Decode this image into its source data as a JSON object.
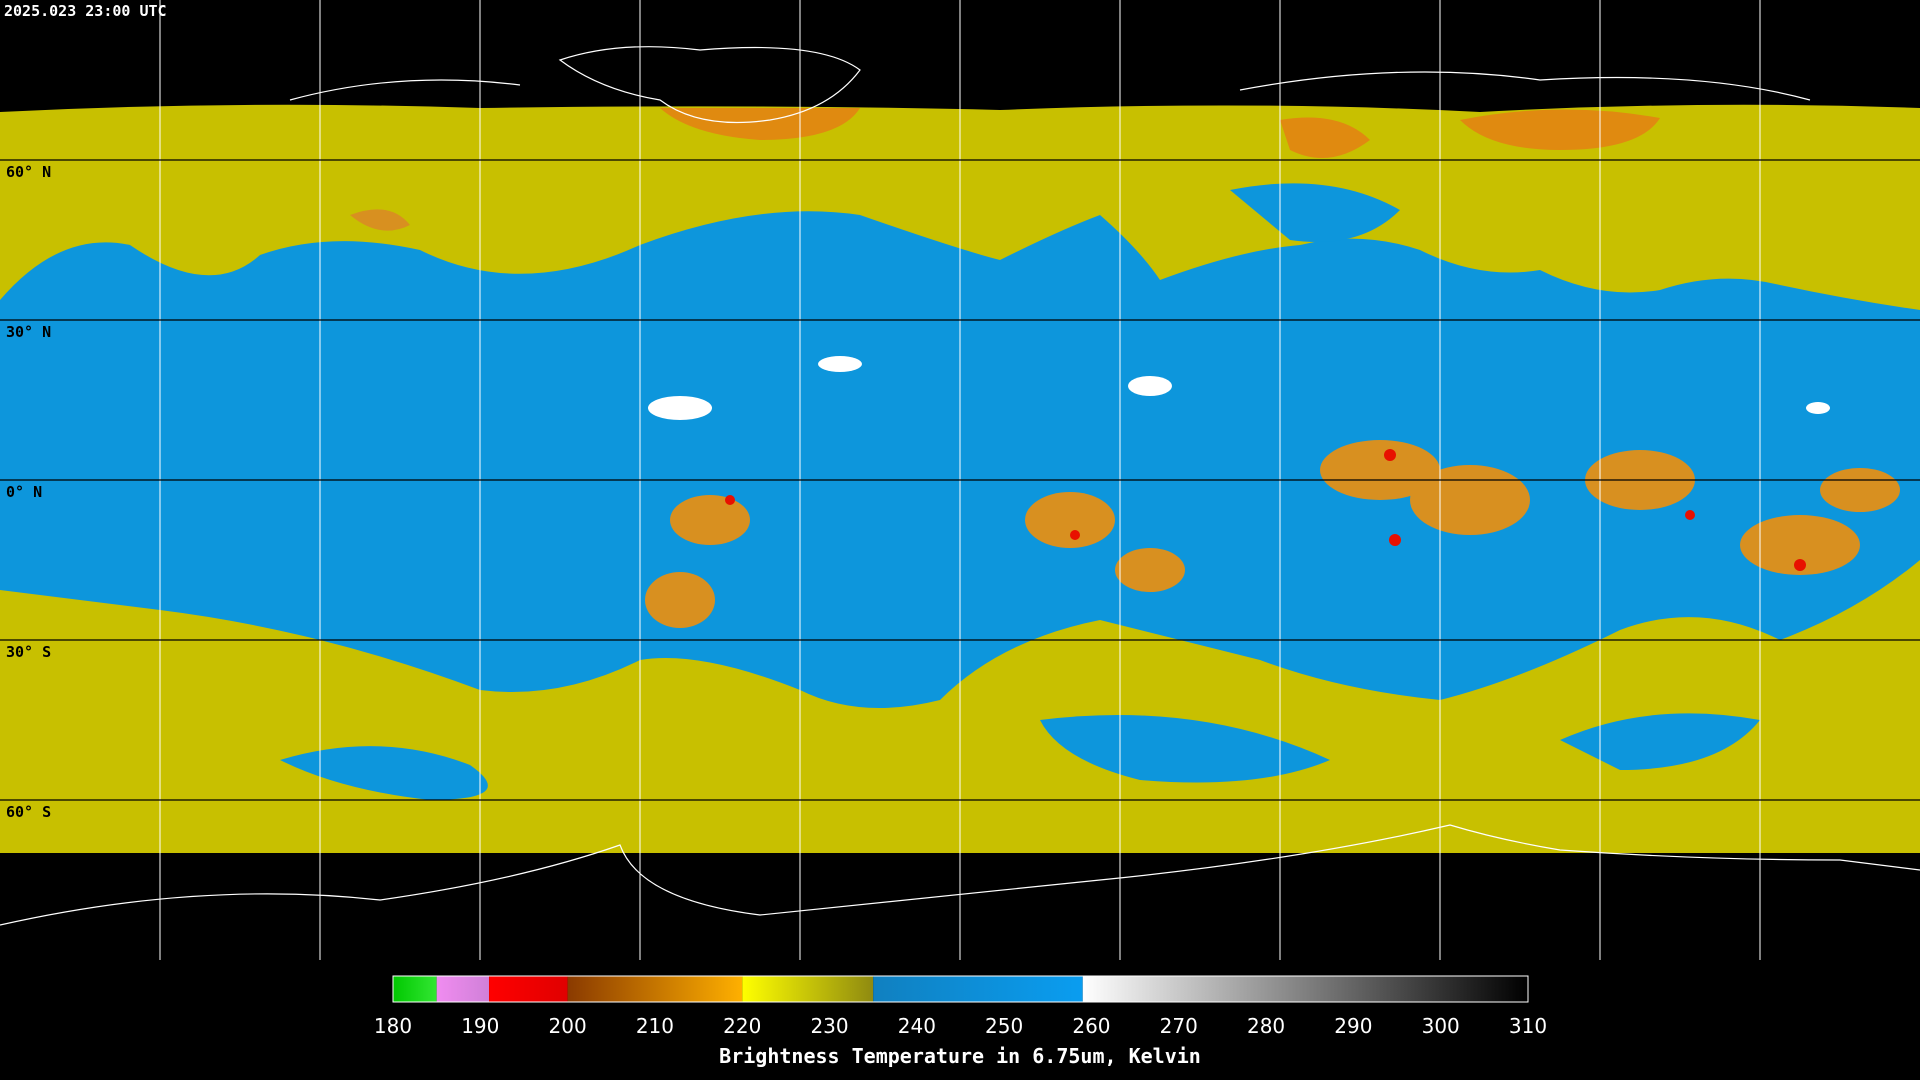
{
  "header": {
    "timestamp": "2025.023 23:00 UTC"
  },
  "map": {
    "latitude_labels": [
      {
        "value": 60,
        "label": "60° N"
      },
      {
        "value": 30,
        "label": "30° N"
      },
      {
        "value": 0,
        "label": "0° N"
      },
      {
        "value": -30,
        "label": "30° S"
      },
      {
        "value": -60,
        "label": "60° S"
      }
    ]
  },
  "colorbar": {
    "range": [
      180,
      310
    ],
    "ticks": [
      180,
      190,
      200,
      210,
      220,
      230,
      240,
      250,
      260,
      270,
      280,
      290,
      300,
      310
    ],
    "segments": [
      {
        "from": 180,
        "to": 185,
        "colors": [
          "#00c800",
          "#33e633"
        ]
      },
      {
        "from": 185,
        "to": 191,
        "colors": [
          "#f08cf0",
          "#d080d8"
        ]
      },
      {
        "from": 191,
        "to": 200,
        "colors": [
          "#ff0000",
          "#e00000"
        ]
      },
      {
        "from": 200,
        "to": 220,
        "colors": [
          "#8a3a00",
          "#ffb000"
        ]
      },
      {
        "from": 220,
        "to": 235,
        "colors": [
          "#ffff00",
          "#8f8a10"
        ]
      },
      {
        "from": 235,
        "to": 259,
        "colors": [
          "#1080c0",
          "#0a9df0"
        ]
      },
      {
        "from": 259,
        "to": 310,
        "colors": [
          "#ffffff",
          "#000000"
        ]
      }
    ],
    "label": "Brightness Temperature in 6.75um, Kelvin"
  }
}
